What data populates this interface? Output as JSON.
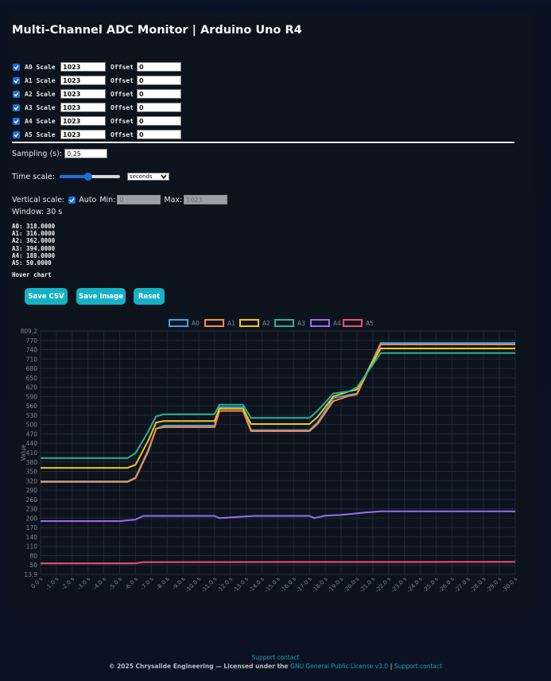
{
  "title": "Multi-Channel ADC Monitor | Arduino Uno R4",
  "channels": [
    {
      "name": "A0",
      "scale_label": "Scale",
      "scale": "1023",
      "offset_label": "Offset",
      "offset": "0",
      "checked": true
    },
    {
      "name": "A1",
      "scale_label": "Scale",
      "scale": "1023",
      "offset_label": "Offset",
      "offset": "0",
      "checked": true
    },
    {
      "name": "A2",
      "scale_label": "Scale",
      "scale": "1023",
      "offset_label": "Offset",
      "offset": "0",
      "checked": true
    },
    {
      "name": "A3",
      "scale_label": "Scale",
      "scale": "1023",
      "offset_label": "Offset",
      "offset": "0",
      "checked": true
    },
    {
      "name": "A4",
      "scale_label": "Scale",
      "scale": "1023",
      "offset_label": "Offset",
      "offset": "0",
      "checked": true
    },
    {
      "name": "A5",
      "scale_label": "Scale",
      "scale": "1023",
      "offset_label": "Offset",
      "offset": "0",
      "checked": true
    }
  ],
  "sampling": {
    "label": "Sampling (s):",
    "value": "0,25"
  },
  "time_scale": {
    "label": "Time scale:",
    "unit": "seconds",
    "slider_fraction": 0.47
  },
  "vertical": {
    "label": "Vertical scale:",
    "auto_label": "Auto",
    "min_label": "Min:",
    "min_placeholder": "0",
    "max_label": "Max:",
    "max_placeholder": "1023",
    "auto_checked": true
  },
  "window": "Window: 30 s",
  "readouts": [
    "A0: 318.0000",
    "A1: 316.0000",
    "A2: 362.0000",
    "A3: 394.0000",
    "A4: 188.0000",
    "A5: 50.0000"
  ],
  "hover_hint": "Hover chart",
  "buttons": {
    "save_csv": "Save CSV",
    "save_image": "Save Image",
    "reset": "Reset"
  },
  "chart_data": {
    "type": "line",
    "ylabel": "Value",
    "ylim": [
      13.9,
      809.2
    ],
    "y_ticks": [
      "809,2",
      "770",
      "740",
      "710",
      "680",
      "650",
      "620",
      "590",
      "560",
      "530",
      "500",
      "470",
      "440",
      "410",
      "380",
      "350",
      "320",
      "290",
      "260",
      "230",
      "200",
      "170",
      "140",
      "110",
      "80",
      "50",
      "13,9"
    ],
    "x_ticks": [
      "0.0 s",
      "-1.0 s",
      "-2.0 s",
      "-3.0 s",
      "-4.0 s",
      "-5.0 s",
      "-6.0 s",
      "-7.0 s",
      "-8.0 s",
      "-9.0 s",
      "-10.0 s",
      "-11.0 s",
      "-12.0 s",
      "-13.0 s",
      "-14.0 s",
      "-15.0 s",
      "-16.0 s",
      "-17.0 s",
      "-18.0 s",
      "-19.0 s",
      "-20.0 s",
      "-21.0 s",
      "-22.0 s",
      "-23.0 s",
      "-24.0 s",
      "-25.0 s",
      "-26.0 s",
      "-27.0 s",
      "-28.0 s",
      "-29.0 s",
      "-30.0 s"
    ],
    "legend_position": "top",
    "grid": true,
    "series": [
      {
        "name": "A0",
        "color": "#36a2eb",
        "points": [
          [
            0,
            318
          ],
          [
            5.5,
            318
          ],
          [
            6,
            330
          ],
          [
            6.8,
            420
          ],
          [
            7.3,
            490
          ],
          [
            7.8,
            500
          ],
          [
            11,
            500
          ],
          [
            11.3,
            560
          ],
          [
            12.8,
            560
          ],
          [
            13.3,
            485
          ],
          [
            17,
            485
          ],
          [
            17.5,
            510
          ],
          [
            18.5,
            590
          ],
          [
            19.5,
            600
          ],
          [
            20,
            605
          ],
          [
            21.5,
            770
          ],
          [
            30,
            770
          ]
        ]
      },
      {
        "name": "A1",
        "color": "#ff8c42",
        "points": [
          [
            0,
            316
          ],
          [
            5.5,
            316
          ],
          [
            6,
            328
          ],
          [
            6.8,
            415
          ],
          [
            7.3,
            490
          ],
          [
            7.8,
            495
          ],
          [
            11,
            495
          ],
          [
            11.3,
            548
          ],
          [
            12.8,
            548
          ],
          [
            13.3,
            482
          ],
          [
            17,
            482
          ],
          [
            17.5,
            505
          ],
          [
            18.5,
            580
          ],
          [
            19.5,
            597
          ],
          [
            20,
            602
          ],
          [
            21.5,
            765
          ],
          [
            30,
            765
          ]
        ]
      },
      {
        "name": "A2",
        "color": "#f5c518",
        "points": [
          [
            0,
            362
          ],
          [
            5.5,
            362
          ],
          [
            6,
            372
          ],
          [
            6.8,
            450
          ],
          [
            7.3,
            510
          ],
          [
            7.8,
            515
          ],
          [
            11,
            515
          ],
          [
            11.3,
            555
          ],
          [
            12.8,
            555
          ],
          [
            13.3,
            505
          ],
          [
            17,
            505
          ],
          [
            17.5,
            528
          ],
          [
            18.5,
            595
          ],
          [
            19.5,
            612
          ],
          [
            20,
            618
          ],
          [
            21.5,
            752
          ],
          [
            30,
            752
          ]
        ]
      },
      {
        "name": "A3",
        "color": "#2bb39a",
        "points": [
          [
            0,
            394
          ],
          [
            5.5,
            394
          ],
          [
            6,
            410
          ],
          [
            6.8,
            480
          ],
          [
            7.3,
            530
          ],
          [
            7.8,
            537
          ],
          [
            11,
            537
          ],
          [
            11.3,
            568
          ],
          [
            12.8,
            568
          ],
          [
            13.3,
            525
          ],
          [
            17,
            525
          ],
          [
            17.5,
            548
          ],
          [
            18.5,
            605
          ],
          [
            19.5,
            612
          ],
          [
            20,
            625
          ],
          [
            21.5,
            737
          ],
          [
            30,
            737
          ]
        ]
      },
      {
        "name": "A4",
        "color": "#9b6cf0",
        "points": [
          [
            0,
            188
          ],
          [
            5,
            188
          ],
          [
            6,
            193
          ],
          [
            6.5,
            205
          ],
          [
            11,
            205
          ],
          [
            11.3,
            198
          ],
          [
            13.5,
            205
          ],
          [
            17,
            205
          ],
          [
            17.3,
            198
          ],
          [
            18,
            206
          ],
          [
            19,
            208
          ],
          [
            20.5,
            216
          ],
          [
            21.5,
            220
          ],
          [
            30,
            220
          ]
        ]
      },
      {
        "name": "A5",
        "color": "#f0506e",
        "points": [
          [
            0,
            50
          ],
          [
            6,
            50
          ],
          [
            6.5,
            54
          ],
          [
            30,
            55
          ]
        ]
      }
    ]
  }
}
